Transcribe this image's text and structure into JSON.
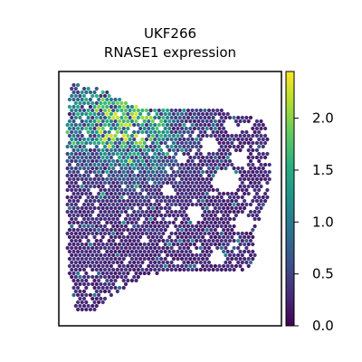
{
  "chart_data": {
    "type": "heatmap",
    "plot_kind": "spatial-hexbin-scatter",
    "title": "UKF266",
    "subtitle": "RNASE1 expression",
    "xlabel": "",
    "ylabel": "",
    "colormap": "viridis",
    "color_range": [
      0.0,
      2.45
    ],
    "colorbar_ticks": [
      "0.0",
      "0.5",
      "1.0",
      "1.5",
      "2.0"
    ],
    "colorbar_tick_values": [
      0.0,
      0.5,
      1.0,
      1.5,
      2.0
    ],
    "axes_ticks_visible": false,
    "grid": false,
    "legend": "colorbar-right",
    "value_distribution": {
      "bulk_range": [
        0.0,
        0.6
      ],
      "max_observed": 2.3,
      "high_expression_region": "upper-left",
      "note_visible": false
    }
  }
}
